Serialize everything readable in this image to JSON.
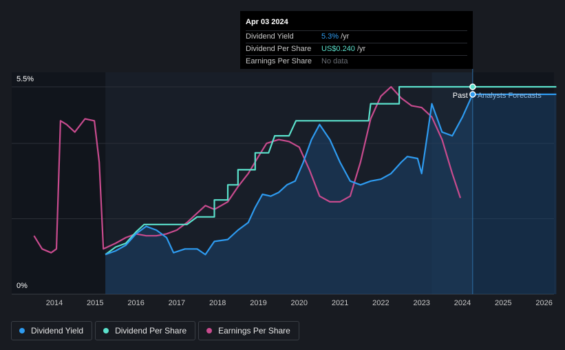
{
  "tooltip": {
    "date": "Apr 03 2024",
    "rows": [
      {
        "label": "Dividend Yield",
        "value": "5.3%",
        "unit": "/yr"
      },
      {
        "label": "Dividend Per Share",
        "value": "US$0.240",
        "unit": "/yr"
      },
      {
        "label": "Earnings Per Share",
        "value": "No data"
      }
    ]
  },
  "legend": [
    {
      "label": "Dividend Yield",
      "color": "#2e9bf0"
    },
    {
      "label": "Dividend Per Share",
      "color": "#5be1cc"
    },
    {
      "label": "Earnings Per Share",
      "color": "#c84b8e"
    }
  ],
  "chart_data": {
    "type": "line",
    "title": "",
    "xlabel": "",
    "ylabel": "",
    "xlim": [
      2013.2,
      2026.3
    ],
    "ylim": [
      0,
      5.5
    ],
    "y_tick_labels": [
      {
        "value": 5.5,
        "label": "5.5%"
      },
      {
        "value": 0,
        "label": "0%"
      }
    ],
    "x_ticks": [
      2014,
      2015,
      2016,
      2017,
      2018,
      2019,
      2020,
      2021,
      2022,
      2023,
      2024,
      2025,
      2026
    ],
    "today": 2024.25,
    "forecast_start": 2023.25,
    "past_label": "Past",
    "forecast_label": "Analysts Forecasts",
    "series": [
      {
        "name": "Dividend Yield",
        "color": "#2e9bf0",
        "points": [
          [
            2015.25,
            1.05
          ],
          [
            2015.5,
            1.15
          ],
          [
            2015.75,
            1.3
          ],
          [
            2016,
            1.6
          ],
          [
            2016.25,
            1.8
          ],
          [
            2016.5,
            1.7
          ],
          [
            2016.75,
            1.5
          ],
          [
            2016.92,
            1.1
          ],
          [
            2017.2,
            1.2
          ],
          [
            2017.5,
            1.2
          ],
          [
            2017.7,
            1.05
          ],
          [
            2017.92,
            1.4
          ],
          [
            2018.25,
            1.45
          ],
          [
            2018.5,
            1.7
          ],
          [
            2018.75,
            1.9
          ],
          [
            2018.92,
            2.3
          ],
          [
            2019.1,
            2.65
          ],
          [
            2019.3,
            2.6
          ],
          [
            2019.5,
            2.7
          ],
          [
            2019.7,
            2.9
          ],
          [
            2019.9,
            3.0
          ],
          [
            2020.1,
            3.5
          ],
          [
            2020.3,
            4.1
          ],
          [
            2020.5,
            4.5
          ],
          [
            2020.75,
            4.1
          ],
          [
            2021,
            3.5
          ],
          [
            2021.25,
            3.0
          ],
          [
            2021.5,
            2.9
          ],
          [
            2021.75,
            3.0
          ],
          [
            2022,
            3.05
          ],
          [
            2022.25,
            3.2
          ],
          [
            2022.5,
            3.5
          ],
          [
            2022.65,
            3.65
          ],
          [
            2022.9,
            3.6
          ],
          [
            2023.0,
            3.2
          ],
          [
            2023.15,
            4.3
          ],
          [
            2023.25,
            5.05
          ],
          [
            2023.5,
            4.3
          ],
          [
            2023.75,
            4.2
          ],
          [
            2024.0,
            4.7
          ],
          [
            2024.25,
            5.3
          ],
          [
            2026.3,
            5.3
          ]
        ]
      },
      {
        "name": "Dividend Per Share",
        "color": "#5be1cc",
        "points": [
          [
            2015.25,
            1.05
          ],
          [
            2015.5,
            1.25
          ],
          [
            2015.75,
            1.35
          ],
          [
            2016,
            1.65
          ],
          [
            2016.2,
            1.85
          ],
          [
            2017.25,
            1.85
          ],
          [
            2017.5,
            2.05
          ],
          [
            2017.92,
            2.05
          ],
          [
            2017.92,
            2.5
          ],
          [
            2018.25,
            2.5
          ],
          [
            2018.25,
            2.9
          ],
          [
            2018.5,
            2.9
          ],
          [
            2018.5,
            3.3
          ],
          [
            2018.92,
            3.3
          ],
          [
            2018.92,
            3.75
          ],
          [
            2019.25,
            3.75
          ],
          [
            2019.4,
            4.2
          ],
          [
            2019.75,
            4.2
          ],
          [
            2019.92,
            4.6
          ],
          [
            2021.5,
            4.6
          ],
          [
            2021.7,
            4.6
          ],
          [
            2021.75,
            5.05
          ],
          [
            2022.45,
            5.05
          ],
          [
            2022.45,
            5.5
          ],
          [
            2026.3,
            5.5
          ]
        ]
      },
      {
        "name": "Earnings Per Share",
        "color": "#c84b8e",
        "points": [
          [
            2013.5,
            1.55
          ],
          [
            2013.7,
            1.2
          ],
          [
            2013.92,
            1.1
          ],
          [
            2014.05,
            1.2
          ],
          [
            2014.15,
            4.6
          ],
          [
            2014.3,
            4.5
          ],
          [
            2014.5,
            4.3
          ],
          [
            2014.75,
            4.65
          ],
          [
            2014.98,
            4.6
          ],
          [
            2015.1,
            3.5
          ],
          [
            2015.2,
            1.2
          ],
          [
            2015.5,
            1.35
          ],
          [
            2015.75,
            1.5
          ],
          [
            2016,
            1.6
          ],
          [
            2016.25,
            1.55
          ],
          [
            2016.5,
            1.55
          ],
          [
            2016.75,
            1.6
          ],
          [
            2017,
            1.7
          ],
          [
            2017.25,
            1.9
          ],
          [
            2017.5,
            2.15
          ],
          [
            2017.7,
            2.35
          ],
          [
            2017.92,
            2.25
          ],
          [
            2018.25,
            2.45
          ],
          [
            2018.5,
            2.85
          ],
          [
            2018.75,
            3.2
          ],
          [
            2019,
            3.65
          ],
          [
            2019.2,
            4.0
          ],
          [
            2019.5,
            4.1
          ],
          [
            2019.75,
            4.05
          ],
          [
            2020,
            3.9
          ],
          [
            2020.25,
            3.3
          ],
          [
            2020.5,
            2.6
          ],
          [
            2020.75,
            2.45
          ],
          [
            2021,
            2.45
          ],
          [
            2021.25,
            2.6
          ],
          [
            2021.5,
            3.5
          ],
          [
            2021.75,
            4.65
          ],
          [
            2022,
            5.25
          ],
          [
            2022.25,
            5.5
          ],
          [
            2022.5,
            5.2
          ],
          [
            2022.75,
            5.0
          ],
          [
            2023,
            4.95
          ],
          [
            2023.25,
            4.7
          ],
          [
            2023.5,
            4.1
          ],
          [
            2023.75,
            3.2
          ],
          [
            2023.95,
            2.55
          ]
        ]
      }
    ]
  }
}
